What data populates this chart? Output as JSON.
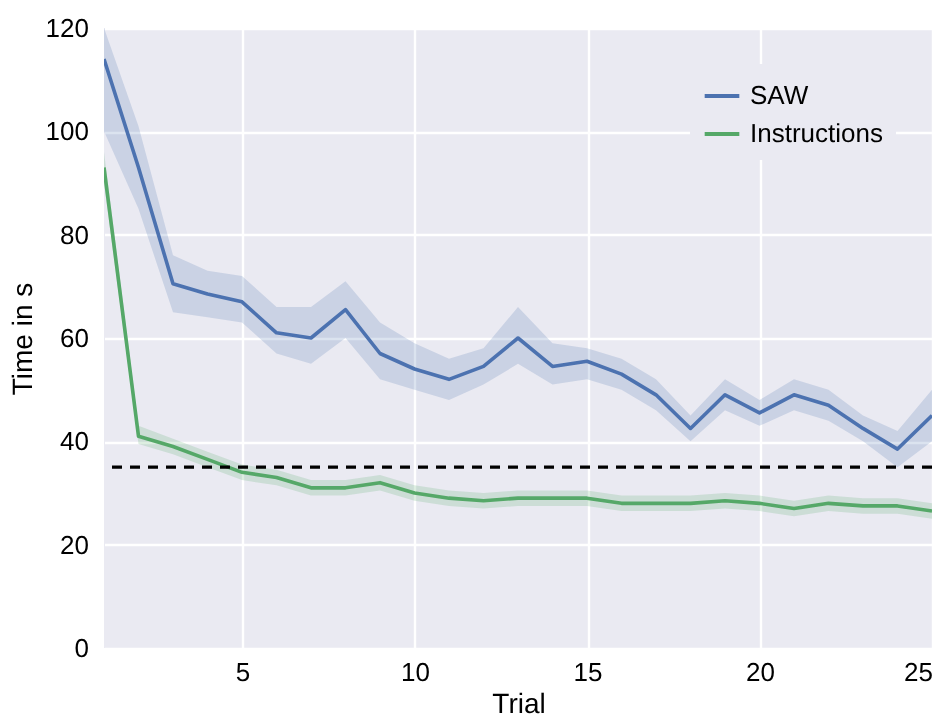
{
  "chart_data": {
    "type": "line",
    "xlabel": "Trial",
    "ylabel": "Time in s",
    "x": [
      1,
      2,
      3,
      4,
      5,
      6,
      7,
      8,
      9,
      10,
      11,
      12,
      13,
      14,
      15,
      16,
      17,
      18,
      19,
      20,
      21,
      22,
      23,
      24,
      25
    ],
    "xlim": [
      1,
      25
    ],
    "xticks": [
      5,
      10,
      15,
      20,
      25
    ],
    "ylim": [
      0,
      120
    ],
    "yticks": [
      0,
      20,
      40,
      60,
      80,
      100,
      120
    ],
    "grid": true,
    "legend": "top right",
    "series": [
      {
        "name": "SAW",
        "color": "#4c72b0",
        "values": [
          114,
          93,
          70.5,
          68.5,
          67,
          61,
          60,
          65.5,
          57,
          54,
          52,
          54.5,
          60,
          54.5,
          55.5,
          53,
          49,
          42.5,
          49,
          45.5,
          49,
          47,
          42.5,
          38.5,
          45
        ],
        "lower": [
          100,
          85,
          65,
          64,
          63,
          57,
          55,
          60,
          52,
          50,
          48,
          51,
          55,
          51,
          52,
          50,
          46,
          40,
          46,
          43,
          46,
          44,
          40,
          35,
          40
        ],
        "upper": [
          120,
          101,
          76,
          73,
          72,
          66,
          66,
          71,
          63,
          59,
          56,
          58,
          66,
          59,
          58,
          56,
          52,
          45,
          52,
          48,
          52,
          50,
          45,
          42,
          50
        ]
      },
      {
        "name": "Instructions",
        "color": "#55a868",
        "values": [
          93,
          41,
          39,
          36.5,
          34,
          33,
          31,
          31,
          32,
          30,
          29,
          28.5,
          29,
          29,
          29,
          28,
          28,
          28,
          28.5,
          28,
          27,
          28,
          27.5,
          27.5,
          26.5
        ],
        "lower": [
          90,
          39.5,
          37.5,
          35,
          32.5,
          31.5,
          29.5,
          29.5,
          30.5,
          28.5,
          27.5,
          27,
          27.5,
          27.5,
          27.5,
          26.5,
          26.5,
          26.5,
          27,
          26.5,
          25.5,
          26.5,
          26,
          26,
          25
        ],
        "upper": [
          96,
          43,
          40.5,
          38,
          35.5,
          34.5,
          32.5,
          32.5,
          33.5,
          31.5,
          30.5,
          30,
          30.5,
          30.5,
          30.5,
          29.5,
          29.5,
          29.5,
          30,
          29.5,
          28.5,
          29.5,
          29,
          29,
          28
        ]
      }
    ],
    "ref_lines": [
      {
        "axis": "y",
        "value": 35,
        "color": "#000000",
        "line_style": "dashed"
      }
    ]
  }
}
